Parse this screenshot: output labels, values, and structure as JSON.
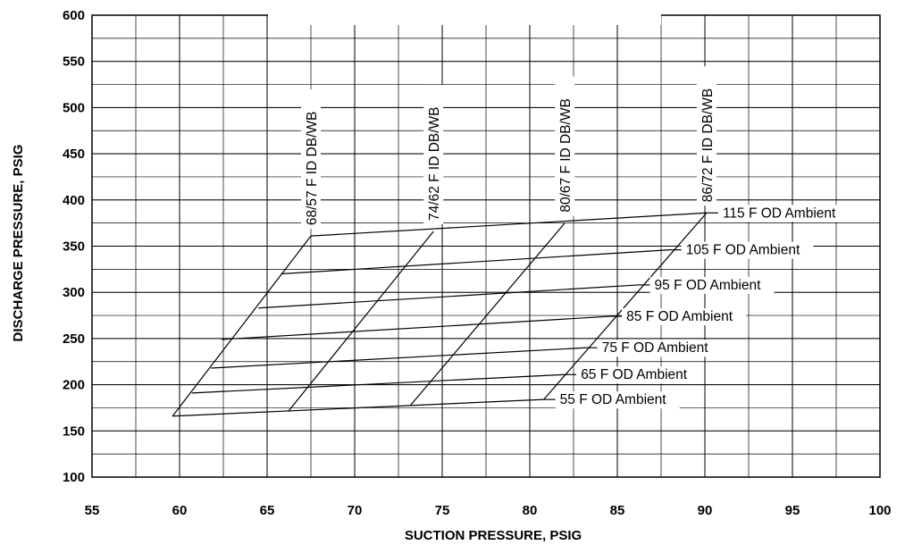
{
  "chart_data": {
    "type": "line",
    "title": "",
    "xlabel": "SUCTION PRESSURE, PSIG",
    "ylabel": "DISCHARGE PRESSURE, PSIG",
    "xlim": [
      55,
      100
    ],
    "ylim": [
      100,
      600
    ],
    "x_ticks": [
      55,
      60,
      65,
      70,
      75,
      80,
      85,
      90,
      95,
      100
    ],
    "y_ticks": [
      100,
      150,
      200,
      250,
      300,
      350,
      400,
      450,
      500,
      550,
      600
    ],
    "x_minor_step": 2.5,
    "y_minor_step": 25,
    "grid": true,
    "outdoor_ambient_curves": [
      {
        "name": "55 F OD Ambient",
        "x": [
          59.6,
          80.8
        ],
        "y": [
          166,
          184
        ]
      },
      {
        "name": "65 F OD Ambient",
        "x": [
          60.7,
          82.0
        ],
        "y": [
          191,
          211
        ]
      },
      {
        "name": "75 F OD Ambient",
        "x": [
          61.8,
          83.2
        ],
        "y": [
          218,
          240
        ]
      },
      {
        "name": "85 F OD Ambient",
        "x": [
          62.4,
          84.6
        ],
        "y": [
          249,
          274
        ]
      },
      {
        "name": "95 F OD Ambient",
        "x": [
          64.5,
          86.2
        ],
        "y": [
          283,
          308
        ]
      },
      {
        "name": "105 F OD Ambient",
        "x": [
          65.8,
          88.0
        ],
        "y": [
          320,
          346
        ]
      },
      {
        "name": "115 F OD Ambient",
        "x": [
          67.5,
          90.1
        ],
        "y": [
          361,
          386
        ]
      }
    ],
    "indoor_curves": [
      {
        "name": "68/57 F ID DB/WB",
        "x": [
          59.6,
          67.5
        ],
        "y": [
          166,
          361
        ]
      },
      {
        "name": "74/62 F ID DB/WB",
        "x": [
          66.2,
          74.5
        ],
        "y": [
          171,
          366
        ]
      },
      {
        "name": "80/67 F ID DB/WB",
        "x": [
          73.2,
          82.0
        ],
        "y": [
          178,
          375
        ]
      },
      {
        "name": "86/72 F ID DB/WB",
        "x": [
          80.8,
          90.1
        ],
        "y": [
          184,
          386
        ]
      }
    ]
  }
}
